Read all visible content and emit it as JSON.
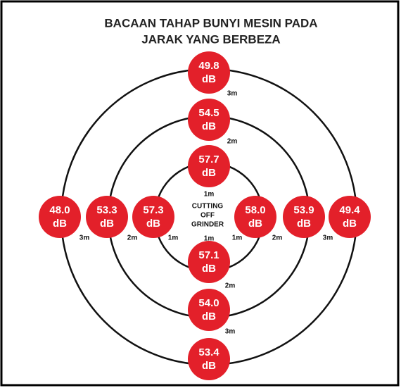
{
  "title": [
    "BACAAN TAHAP BUNYI MESIN PADA",
    "JARAK YANG BERBEZA"
  ],
  "center": [
    "CUTTING",
    "OFF",
    "GRINDER"
  ],
  "nodes": [
    {
      "value": "49.8",
      "unit": "dB"
    },
    {
      "value": "54.5",
      "unit": "dB"
    },
    {
      "value": "57.7",
      "unit": "dB"
    },
    {
      "value": "57.1",
      "unit": "dB"
    },
    {
      "value": "54.0",
      "unit": "dB"
    },
    {
      "value": "53.4",
      "unit": "dB"
    },
    {
      "value": "48.0",
      "unit": "dB"
    },
    {
      "value": "53.3",
      "unit": "dB"
    },
    {
      "value": "57.3",
      "unit": "dB"
    },
    {
      "value": "58.0",
      "unit": "dB"
    },
    {
      "value": "53.9",
      "unit": "dB"
    },
    {
      "value": "49.4",
      "unit": "dB"
    }
  ],
  "distances": [
    "3m",
    "2m",
    "1m",
    "1m",
    "2m",
    "3m",
    "3m",
    "2m",
    "1m",
    "1m",
    "2m",
    "3m"
  ]
}
